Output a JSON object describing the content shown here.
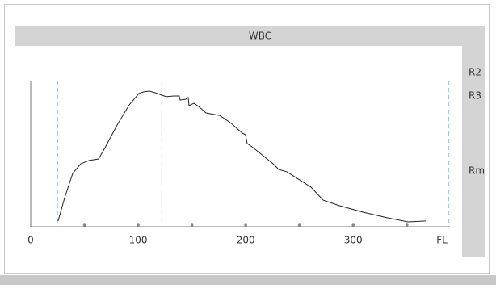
{
  "chart_data": {
    "type": "line",
    "title": "WBC",
    "x_label": "FL",
    "x": [
      25.5,
      31.6,
      39.1,
      46.6,
      54.1,
      63.1,
      69.1,
      80.4,
      91.7,
      100.7,
      105.2,
      110.4,
      115.7,
      121.7,
      126.2,
      133.0,
      138.2,
      139.0,
      144.3,
      146.5,
      147.3,
      151.8,
      156.3,
      163.0,
      175.8,
      185.6,
      196.8,
      199.8,
      201.4,
      205.9,
      213.4,
      225.4,
      230.7,
      238.2,
      247.9,
      260.7,
      272.0,
      287.0,
      309.5,
      332.1,
      350.9,
      367.4
    ],
    "values": [
      3.9,
      19.9,
      36.5,
      43.1,
      45.3,
      46.4,
      54.1,
      69.6,
      83.4,
      91.2,
      92.3,
      92.8,
      91.7,
      90.1,
      89.0,
      89.5,
      89.5,
      86.7,
      87.3,
      88.4,
      82.9,
      84.5,
      82.3,
      77.9,
      76.2,
      71.3,
      64.1,
      63.0,
      56.9,
      54.7,
      50.3,
      43.1,
      39.2,
      37.6,
      33.1,
      27.1,
      18.2,
      14.4,
      9.9,
      6.1,
      3.3,
      3.9
    ],
    "color": "#222222",
    "xlim": [
      0,
      390
    ],
    "ylim": [
      0,
      100
    ],
    "xticks": [
      0,
      100,
      200,
      300
    ],
    "xminorticks": [
      50,
      100,
      150,
      200,
      250,
      300,
      350
    ],
    "thresholds": [
      25,
      122,
      177,
      389
    ],
    "threshold_color": "#7fc8d8",
    "side_labels": [
      "R2",
      "R3",
      "Rm"
    ]
  }
}
